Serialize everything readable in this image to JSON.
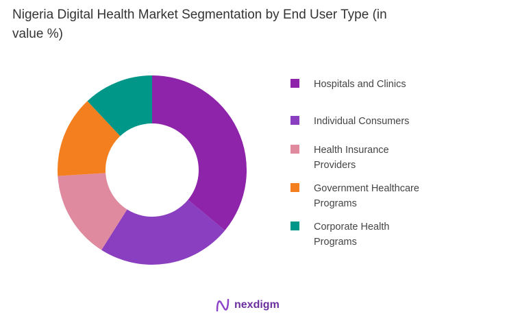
{
  "chart_data": {
    "type": "pie",
    "variant": "donut",
    "title": "Nigeria Digital Health Market Segmentation by End User Type (in value %)",
    "categories": [
      "Hospitals and Clinics",
      "Individual Consumers",
      "Health Insurance Providers",
      "Government Healthcare Programs",
      "Corporate Health Programs"
    ],
    "values": [
      36,
      23,
      15,
      14,
      12
    ],
    "colors": [
      "#8e24aa",
      "#8a3fc0",
      "#e08aa0",
      "#f47f1f",
      "#009688"
    ],
    "legend_position": "right"
  },
  "brand": {
    "name": "nexdigm"
  }
}
